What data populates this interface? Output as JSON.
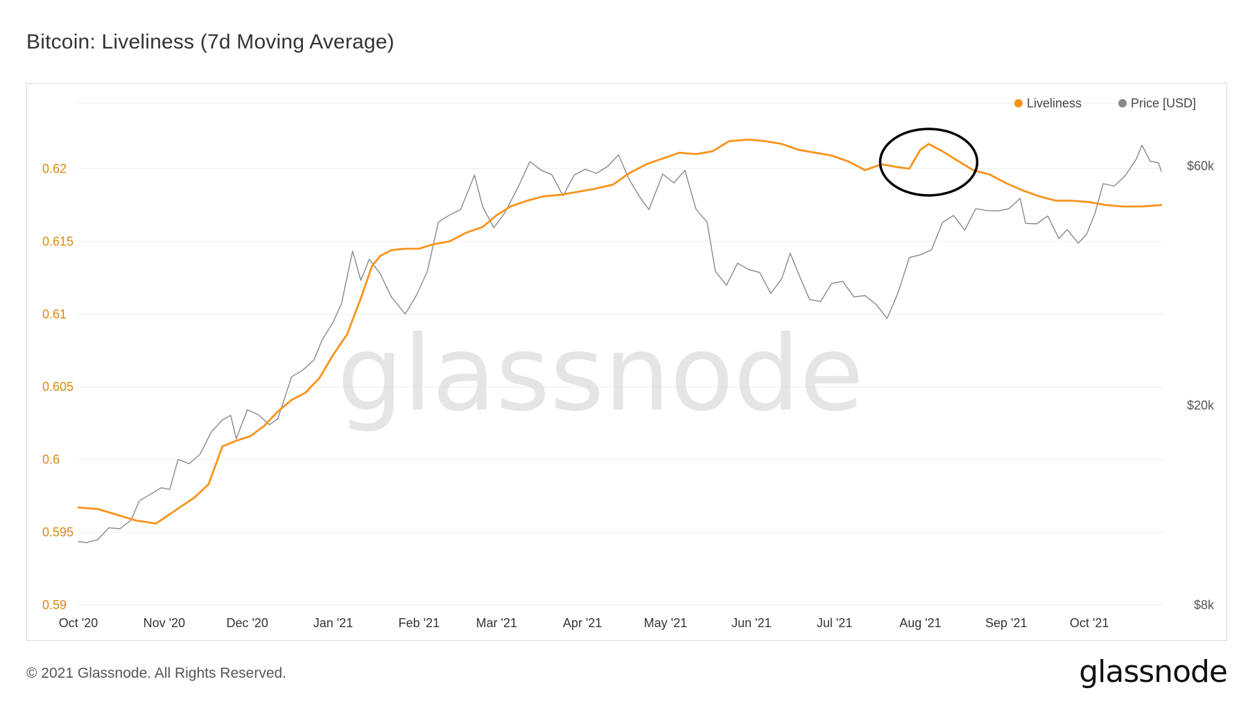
{
  "header": {
    "title": "Bitcoin: Liveliness (7d Moving Average)"
  },
  "footer": {
    "copyright": "© 2021 Glassnode. All Rights Reserved.",
    "logo_text": "glassnode"
  },
  "colors": {
    "liveliness": "#f7931a",
    "price": "#888888",
    "left_axis": "#d98a0b",
    "grid": "#eeeeee"
  },
  "chart_data": {
    "type": "line",
    "title": "Bitcoin: Liveliness (7d Moving Average)",
    "watermark": "glassnode",
    "legend": {
      "placement": "top-right",
      "items": [
        {
          "name": "Liveliness",
          "color": "#f7931a"
        },
        {
          "name": "Price [USD]",
          "color": "#888888"
        }
      ]
    },
    "x_range": [
      "2020-10-01",
      "2021-10-28"
    ],
    "x_ticks": [
      {
        "date": "2020-10-01",
        "label": "Oct '20"
      },
      {
        "date": "2020-11-01",
        "label": "Nov '20"
      },
      {
        "date": "2020-12-01",
        "label": "Dec '20"
      },
      {
        "date": "2021-01-01",
        "label": "Jan '21"
      },
      {
        "date": "2021-02-01",
        "label": "Feb '21"
      },
      {
        "date": "2021-03-01",
        "label": "Mar '21"
      },
      {
        "date": "2021-04-01",
        "label": "Apr '21"
      },
      {
        "date": "2021-05-01",
        "label": "May '21"
      },
      {
        "date": "2021-06-01",
        "label": "Jun '21"
      },
      {
        "date": "2021-07-01",
        "label": "Jul '21"
      },
      {
        "date": "2021-08-01",
        "label": "Aug '21"
      },
      {
        "date": "2021-09-01",
        "label": "Sep '21"
      },
      {
        "date": "2021-10-01",
        "label": "Oct '21"
      }
    ],
    "y_left": {
      "ylim": [
        0.59,
        0.6245
      ],
      "scale": "linear",
      "ticks": [
        0.59,
        0.595,
        0.6,
        0.605,
        0.61,
        0.615,
        0.62
      ],
      "tick_labels": [
        "0.59",
        "0.595",
        "0.6",
        "0.605",
        "0.61",
        "0.615",
        "0.62"
      ]
    },
    "y_right": {
      "ylim": [
        8000,
        80000
      ],
      "scale": "log",
      "ticks": [
        8000,
        20000,
        60000
      ],
      "tick_labels": [
        "$8k",
        "$20k",
        "$60k"
      ]
    },
    "grid": true,
    "annotation": {
      "type": "ellipse",
      "date": "2021-08-04",
      "value": 0.6215,
      "color": "#000000"
    },
    "series": [
      {
        "name": "Liveliness",
        "axis": "left",
        "color": "#f7931a",
        "points": [
          [
            "2020-10-01",
            0.5967
          ],
          [
            "2020-10-08",
            0.5966
          ],
          [
            "2020-10-15",
            0.5962
          ],
          [
            "2020-10-22",
            0.5958
          ],
          [
            "2020-10-29",
            0.5956
          ],
          [
            "2020-11-05",
            0.5965
          ],
          [
            "2020-11-12",
            0.5974
          ],
          [
            "2020-11-17",
            0.5983
          ],
          [
            "2020-11-22",
            0.6009
          ],
          [
            "2020-11-27",
            0.6013
          ],
          [
            "2020-12-02",
            0.6016
          ],
          [
            "2020-12-07",
            0.6023
          ],
          [
            "2020-12-12",
            0.6033
          ],
          [
            "2020-12-17",
            0.6041
          ],
          [
            "2020-12-22",
            0.6046
          ],
          [
            "2020-12-27",
            0.6056
          ],
          [
            "2021-01-01",
            0.6072
          ],
          [
            "2021-01-06",
            0.6086
          ],
          [
            "2021-01-11",
            0.6111
          ],
          [
            "2021-01-15",
            0.6133
          ],
          [
            "2021-01-18",
            0.614
          ],
          [
            "2021-01-22",
            0.6144
          ],
          [
            "2021-01-27",
            0.6145
          ],
          [
            "2021-02-01",
            0.6145
          ],
          [
            "2021-02-06",
            0.6148
          ],
          [
            "2021-02-12",
            0.615
          ],
          [
            "2021-02-18",
            0.6156
          ],
          [
            "2021-02-24",
            0.616
          ],
          [
            "2021-03-01",
            0.6168
          ],
          [
            "2021-03-06",
            0.6174
          ],
          [
            "2021-03-12",
            0.6178
          ],
          [
            "2021-03-18",
            0.6181
          ],
          [
            "2021-03-24",
            0.6182
          ],
          [
            "2021-03-30",
            0.6184
          ],
          [
            "2021-04-05",
            0.6186
          ],
          [
            "2021-04-12",
            0.6189
          ],
          [
            "2021-04-18",
            0.6197
          ],
          [
            "2021-04-24",
            0.6203
          ],
          [
            "2021-04-30",
            0.6207
          ],
          [
            "2021-05-06",
            0.6211
          ],
          [
            "2021-05-12",
            0.621
          ],
          [
            "2021-05-18",
            0.6212
          ],
          [
            "2021-05-24",
            0.6219
          ],
          [
            "2021-05-31",
            0.622
          ],
          [
            "2021-06-06",
            0.6219
          ],
          [
            "2021-06-12",
            0.6217
          ],
          [
            "2021-06-18",
            0.6213
          ],
          [
            "2021-06-24",
            0.6211
          ],
          [
            "2021-06-30",
            0.6209
          ],
          [
            "2021-07-06",
            0.6205
          ],
          [
            "2021-07-12",
            0.6199
          ],
          [
            "2021-07-18",
            0.6203
          ],
          [
            "2021-07-24",
            0.6201
          ],
          [
            "2021-07-28",
            0.62
          ],
          [
            "2021-08-01",
            0.6213
          ],
          [
            "2021-08-04",
            0.6217
          ],
          [
            "2021-08-09",
            0.6212
          ],
          [
            "2021-08-14",
            0.6206
          ],
          [
            "2021-08-20",
            0.6199
          ],
          [
            "2021-08-26",
            0.6196
          ],
          [
            "2021-09-01",
            0.619
          ],
          [
            "2021-09-07",
            0.6185
          ],
          [
            "2021-09-13",
            0.6181
          ],
          [
            "2021-09-19",
            0.6178
          ],
          [
            "2021-09-25",
            0.6178
          ],
          [
            "2021-10-01",
            0.6177
          ],
          [
            "2021-10-07",
            0.6175
          ],
          [
            "2021-10-13",
            0.6174
          ],
          [
            "2021-10-20",
            0.6174
          ],
          [
            "2021-10-27",
            0.6175
          ]
        ]
      },
      {
        "name": "Price [USD]",
        "axis": "right",
        "color": "#888888",
        "points": [
          [
            "2020-10-01",
            10700
          ],
          [
            "2020-10-04",
            10650
          ],
          [
            "2020-10-08",
            10800
          ],
          [
            "2020-10-12",
            11400
          ],
          [
            "2020-10-16",
            11350
          ],
          [
            "2020-10-20",
            11800
          ],
          [
            "2020-10-23",
            12900
          ],
          [
            "2020-10-27",
            13300
          ],
          [
            "2020-10-31",
            13700
          ],
          [
            "2020-11-03",
            13600
          ],
          [
            "2020-11-06",
            15600
          ],
          [
            "2020-11-10",
            15300
          ],
          [
            "2020-11-14",
            16000
          ],
          [
            "2020-11-18",
            17700
          ],
          [
            "2020-11-22",
            18700
          ],
          [
            "2020-11-25",
            19100
          ],
          [
            "2020-11-27",
            17150
          ],
          [
            "2020-12-01",
            19600
          ],
          [
            "2020-12-05",
            19150
          ],
          [
            "2020-12-09",
            18300
          ],
          [
            "2020-12-12",
            18800
          ],
          [
            "2020-12-17",
            22800
          ],
          [
            "2020-12-21",
            23500
          ],
          [
            "2020-12-25",
            24600
          ],
          [
            "2020-12-28",
            27000
          ],
          [
            "2021-01-01",
            29300
          ],
          [
            "2021-01-04",
            31900
          ],
          [
            "2021-01-08",
            40600
          ],
          [
            "2021-01-11",
            35500
          ],
          [
            "2021-01-14",
            39100
          ],
          [
            "2021-01-18",
            36600
          ],
          [
            "2021-01-22",
            32900
          ],
          [
            "2021-01-27",
            30400
          ],
          [
            "2021-01-31",
            33100
          ],
          [
            "2021-02-04",
            37000
          ],
          [
            "2021-02-08",
            46400
          ],
          [
            "2021-02-12",
            47900
          ],
          [
            "2021-02-16",
            49100
          ],
          [
            "2021-02-21",
            57500
          ],
          [
            "2021-02-24",
            49700
          ],
          [
            "2021-02-28",
            45200
          ],
          [
            "2021-03-04",
            48400
          ],
          [
            "2021-03-09",
            54800
          ],
          [
            "2021-03-13",
            61200
          ],
          [
            "2021-03-17",
            58900
          ],
          [
            "2021-03-21",
            57600
          ],
          [
            "2021-03-25",
            52300
          ],
          [
            "2021-03-29",
            57500
          ],
          [
            "2021-04-02",
            59100
          ],
          [
            "2021-04-06",
            58000
          ],
          [
            "2021-04-10",
            59800
          ],
          [
            "2021-04-14",
            63100
          ],
          [
            "2021-04-18",
            56200
          ],
          [
            "2021-04-22",
            51700
          ],
          [
            "2021-04-25",
            49100
          ],
          [
            "2021-04-30",
            57800
          ],
          [
            "2021-05-04",
            55500
          ],
          [
            "2021-05-08",
            58800
          ],
          [
            "2021-05-12",
            49200
          ],
          [
            "2021-05-16",
            46400
          ],
          [
            "2021-05-19",
            37000
          ],
          [
            "2021-05-23",
            34700
          ],
          [
            "2021-05-27",
            38400
          ],
          [
            "2021-05-31",
            37300
          ],
          [
            "2021-06-04",
            36800
          ],
          [
            "2021-06-08",
            33400
          ],
          [
            "2021-06-12",
            35800
          ],
          [
            "2021-06-15",
            40200
          ],
          [
            "2021-06-19",
            35500
          ],
          [
            "2021-06-22",
            32500
          ],
          [
            "2021-06-26",
            32200
          ],
          [
            "2021-06-30",
            35000
          ],
          [
            "2021-07-04",
            35300
          ],
          [
            "2021-07-08",
            32900
          ],
          [
            "2021-07-12",
            33100
          ],
          [
            "2021-07-16",
            31800
          ],
          [
            "2021-07-20",
            29800
          ],
          [
            "2021-07-24",
            33600
          ],
          [
            "2021-07-28",
            39400
          ],
          [
            "2021-08-01",
            39900
          ],
          [
            "2021-08-05",
            40800
          ],
          [
            "2021-08-09",
            46300
          ],
          [
            "2021-08-13",
            47800
          ],
          [
            "2021-08-17",
            44700
          ],
          [
            "2021-08-21",
            49300
          ],
          [
            "2021-08-25",
            48900
          ],
          [
            "2021-08-29",
            48800
          ],
          [
            "2021-09-02",
            49300
          ],
          [
            "2021-09-06",
            51700
          ],
          [
            "2021-09-08",
            46100
          ],
          [
            "2021-09-12",
            46000
          ],
          [
            "2021-09-16",
            47700
          ],
          [
            "2021-09-20",
            43000
          ],
          [
            "2021-09-23",
            44800
          ],
          [
            "2021-09-27",
            42100
          ],
          [
            "2021-09-30",
            43800
          ],
          [
            "2021-10-03",
            48200
          ],
          [
            "2021-10-06",
            55300
          ],
          [
            "2021-10-10",
            54700
          ],
          [
            "2021-10-14",
            57400
          ],
          [
            "2021-10-18",
            62000
          ],
          [
            "2021-10-20",
            66000
          ],
          [
            "2021-10-23",
            61300
          ],
          [
            "2021-10-26",
            60900
          ],
          [
            "2021-10-27",
            58500
          ]
        ]
      }
    ]
  }
}
